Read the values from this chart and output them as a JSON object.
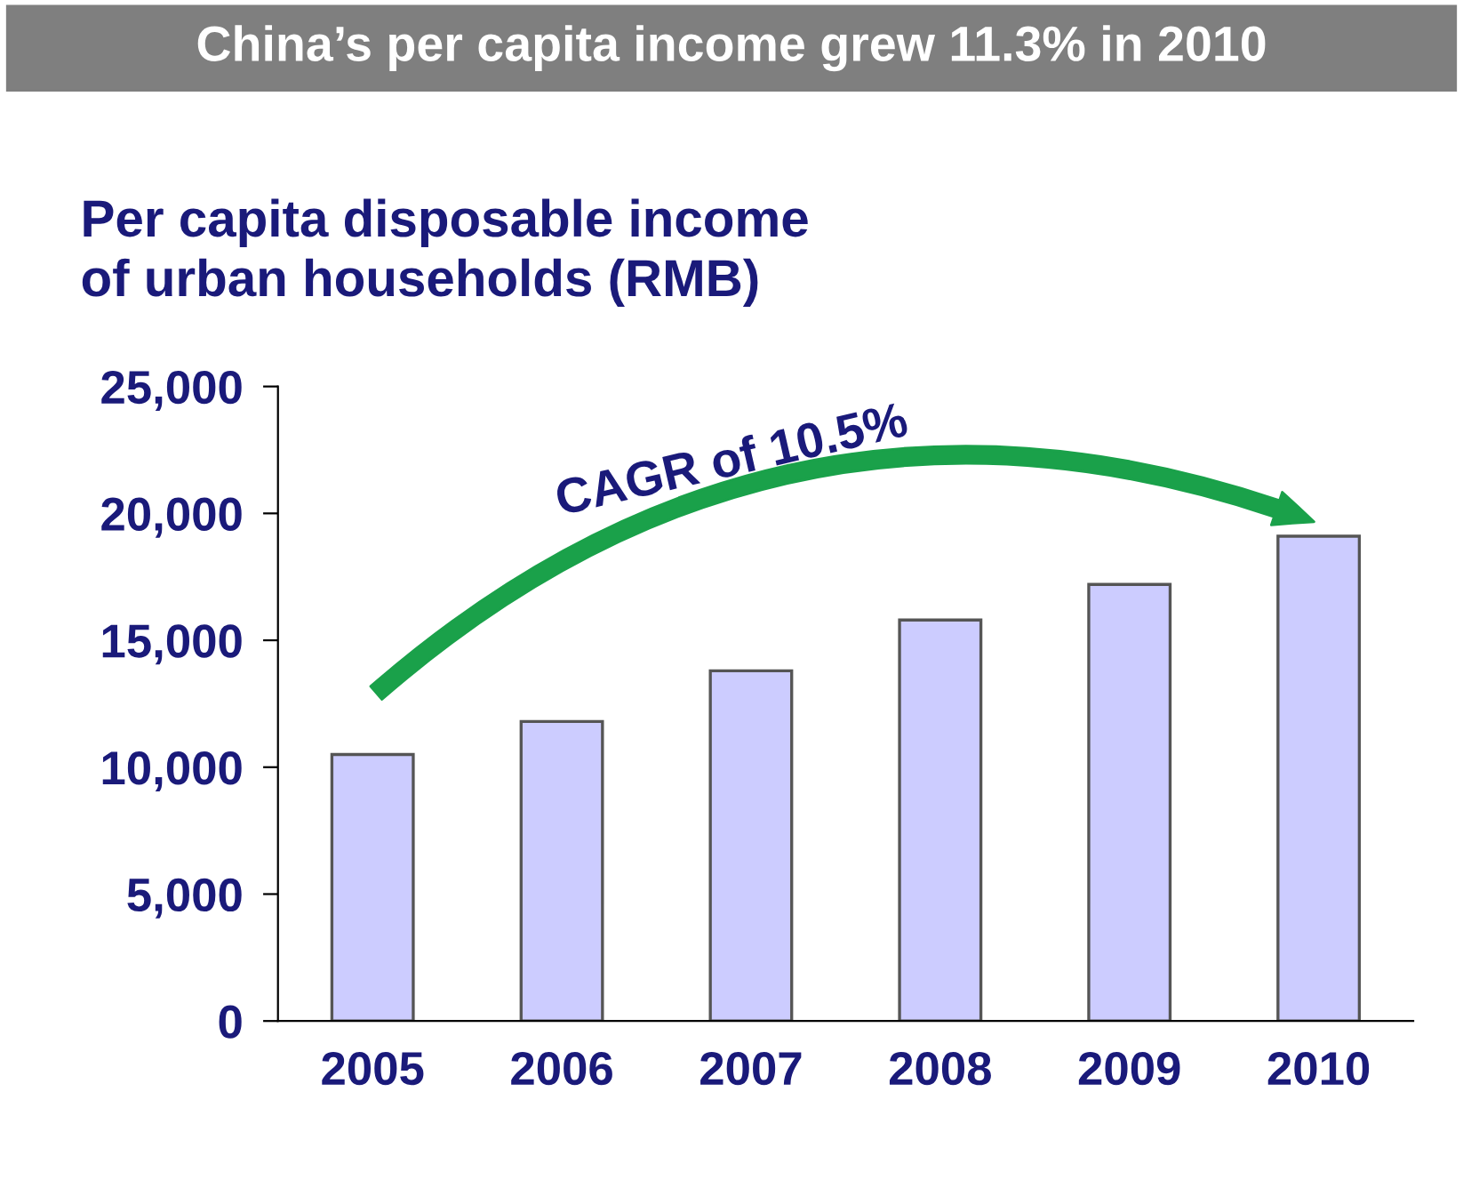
{
  "chart_data": {
    "type": "bar",
    "title": "China’s per capita income grew 11.3% in 2010",
    "ylabel": "Per capita disposable income\nof urban households (RMB)",
    "categories": [
      "2005",
      "2006",
      "2007",
      "2008",
      "2009",
      "2010"
    ],
    "values": [
      10500,
      11800,
      13800,
      15800,
      17200,
      19100
    ],
    "color": "#ccccff",
    "ylim": [
      0,
      25000
    ],
    "yticks": [
      {
        "value": 0,
        "label": "0"
      },
      {
        "value": 5000,
        "label": "5,000"
      },
      {
        "value": 10000,
        "label": "10,000"
      },
      {
        "value": 15000,
        "label": "15,000"
      },
      {
        "value": 20000,
        "label": "20,000"
      },
      {
        "value": 25000,
        "label": "25,000"
      }
    ],
    "annotations": [
      "CAGR of 10.5%"
    ],
    "grid": false,
    "legend": false
  }
}
